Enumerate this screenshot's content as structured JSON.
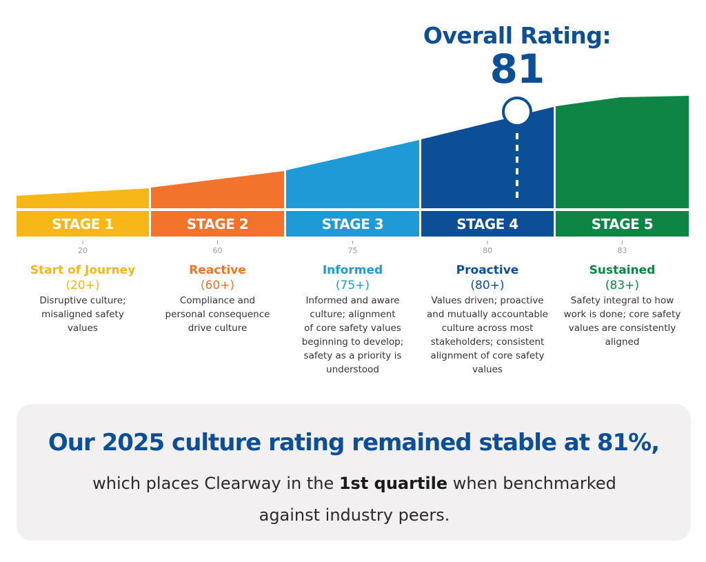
{
  "overall": {
    "label": "Overall Rating:",
    "value": "81",
    "numeric_value": 81
  },
  "colors": {
    "stage1": "#f7b718",
    "stage2": "#f2732b",
    "stage3": "#1f9ad6",
    "stage4": "#0d4f96",
    "stage5": "#0e8545",
    "headline": "#0d4f96",
    "summary_bg": "#f2f0f1"
  },
  "stages": [
    {
      "label": "STAGE 1",
      "tick": "20",
      "title": "Start of Journey",
      "threshold": "(20+)",
      "description": "Disruptive culture; misaligned safety values",
      "lines": [
        "Disruptive culture;",
        "misaligned safety",
        "values"
      ],
      "color": "#f7b718"
    },
    {
      "label": "STAGE 2",
      "tick": "60",
      "title": "Reactive",
      "threshold": "(60+)",
      "description": "Compliance and personal consequence drive culture",
      "lines": [
        "Compliance and",
        "personal consequence",
        "drive culture"
      ],
      "color": "#f2732b"
    },
    {
      "label": "STAGE 3",
      "tick": "75",
      "title": "Informed",
      "threshold": "(75+)",
      "description": "Informed and aware culture; alignment of core safety values beginning to develop; safety as a priority is understood",
      "lines": [
        "Informed and aware",
        "culture; alignment",
        "of core safety values",
        "beginning to develop;",
        "safety as a priority is",
        "understood"
      ],
      "color": "#1f9ad6"
    },
    {
      "label": "STAGE 4",
      "tick": "80",
      "title": "Proactive",
      "threshold": "(80+)",
      "description": "Values driven; proactive and mutually accountable culture across most stakeholders; consistent alignment of core safety values",
      "lines": [
        "Values driven; proactive",
        "and mutually accountable",
        "culture across most",
        "stakeholders; consistent",
        "alignment of core safety",
        "values"
      ],
      "color": "#0d4f96"
    },
    {
      "label": "STAGE 5",
      "tick": "83",
      "title": "Sustained",
      "threshold": "(83+)",
      "description": "Safety integral to how work is done; core safety values are consistently aligned",
      "lines": [
        "Safety integral to how",
        "work is done; core safety",
        "values are consistently",
        "aligned"
      ],
      "color": "#0e8545"
    }
  ],
  "summary": {
    "headline": "Our 2025 culture rating remained stable at 81%,",
    "sub_before": "which places Clearway in the ",
    "sub_bold": "1st quartile",
    "sub_after": " when benchmarked against industry peers."
  }
}
